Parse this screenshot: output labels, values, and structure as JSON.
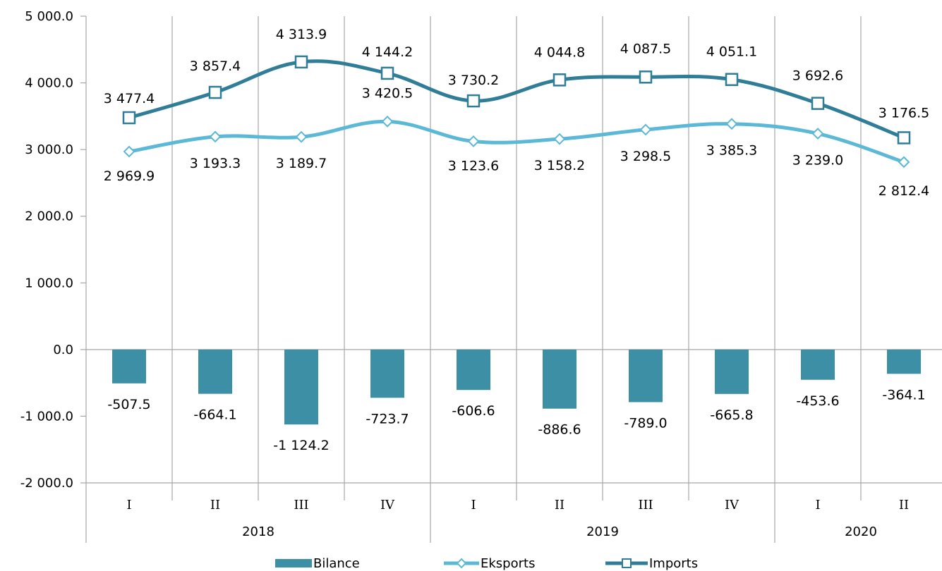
{
  "chart_data": {
    "type": "bar",
    "title": "",
    "xlabel": "",
    "ylabel": "",
    "ylim": [
      -2000,
      5000
    ],
    "yticks": [
      "5 000.0",
      "4 000.0",
      "3 000.0",
      "2 000.0",
      "1 000.0",
      "0.0",
      "-1 000.0",
      "-2 000.0"
    ],
    "ytick_values": [
      5000,
      4000,
      3000,
      2000,
      1000,
      0,
      -1000,
      -2000
    ],
    "categories": [
      "I",
      "II",
      "III",
      "IV",
      "I",
      "II",
      "III",
      "IV",
      "I",
      "II"
    ],
    "groups": [
      {
        "label": "2018",
        "count": 4
      },
      {
        "label": "2019",
        "count": 4
      },
      {
        "label": "2020",
        "count": 2
      }
    ],
    "grid": "vertical",
    "legend_position": "bottom",
    "series": [
      {
        "name": "Bilance",
        "kind": "bar",
        "color": "#3d8fa5",
        "values": [
          -507.5,
          -664.1,
          -1124.2,
          -723.7,
          -606.6,
          -886.6,
          -789.0,
          -665.8,
          -453.6,
          -364.1
        ],
        "labels": [
          "-507.5",
          "-664.1",
          "-1 124.2",
          "-723.7",
          "-606.6",
          "-886.6",
          "-789.0",
          "-665.8",
          "-453.6",
          "-364.1"
        ]
      },
      {
        "name": "Eksports",
        "kind": "line",
        "marker": "diamond",
        "color": "#5bb8d6",
        "values": [
          2969.9,
          3193.3,
          3189.7,
          3420.5,
          3123.6,
          3158.2,
          3298.5,
          3385.3,
          3239.0,
          2812.4
        ],
        "labels": [
          "2 969.9",
          "3 193.3",
          "3 189.7",
          "3 420.5",
          "3 123.6",
          "3 158.2",
          "3 298.5",
          "3 385.3",
          "3 239.0",
          "2 812.4"
        ]
      },
      {
        "name": "Imports",
        "kind": "line",
        "marker": "square",
        "color": "#2f7d96",
        "values": [
          3477.4,
          3857.4,
          4313.9,
          4144.2,
          3730.2,
          4044.8,
          4087.5,
          4051.1,
          3692.6,
          3176.5
        ],
        "labels": [
          "3 477.4",
          "3 857.4",
          "4 313.9",
          "4 144.2",
          "3 730.2",
          "4 044.8",
          "4 087.5",
          "4 051.1",
          "3 692.6",
          "3 176.5"
        ]
      }
    ]
  }
}
